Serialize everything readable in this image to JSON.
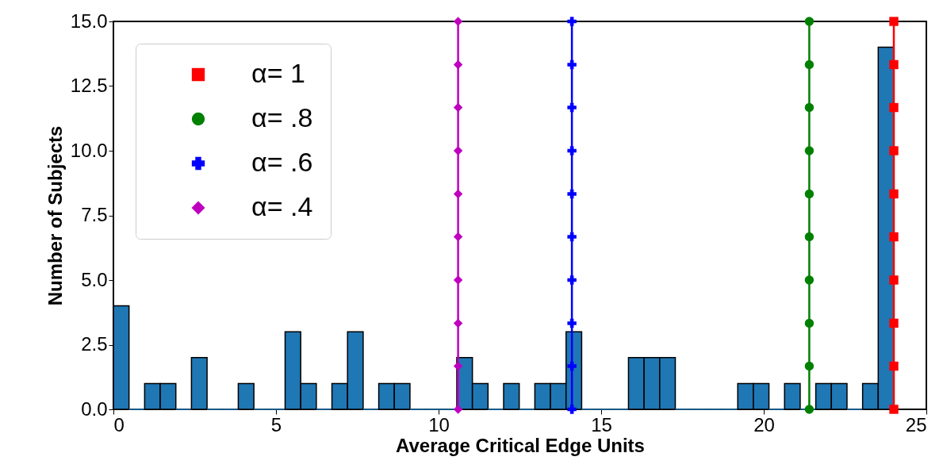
{
  "chart_data": {
    "type": "histogram",
    "xlabel": "Average Critical Edge Units",
    "ylabel": "Number of Subjects",
    "bins": [
      0,
      0.48,
      0.96,
      1.44,
      1.92,
      2.4,
      2.88,
      3.36,
      3.84,
      4.32,
      4.8,
      5.28,
      5.76,
      6.24,
      6.72,
      7.2,
      7.68,
      8.16,
      8.64,
      9.12,
      9.6,
      10.08,
      10.56,
      11.04,
      11.52,
      12,
      12.48,
      12.96,
      13.44,
      13.92,
      14.4,
      14.88,
      15.36,
      15.84,
      16.32,
      16.8,
      17.28,
      17.76,
      18.24,
      18.72,
      19.2,
      19.68,
      20.16,
      20.64,
      21.12,
      21.6,
      22.08,
      22.56,
      23.04,
      23.52,
      24
    ],
    "series": [
      {
        "color": "#1f77b4",
        "values": [
          4,
          0,
          1,
          1,
          0,
          2,
          0,
          0,
          1,
          0,
          0,
          3,
          1,
          0,
          1,
          3,
          0,
          1,
          1,
          0,
          0,
          0,
          2,
          1,
          0,
          1,
          0,
          1,
          1,
          3,
          0,
          0,
          0,
          2,
          2,
          2,
          0,
          0,
          0,
          0,
          1,
          1,
          0,
          1,
          0,
          1,
          1,
          0,
          1,
          14
        ]
      },
      {
        "type": "line",
        "name": "α= 1",
        "color": "#ff0000",
        "marker": "square",
        "x": [
          24,
          24,
          24,
          24,
          24,
          24,
          24,
          24,
          24,
          24
        ],
        "values": [
          0,
          1.67,
          3.33,
          5,
          6.67,
          8.33,
          10,
          11.67,
          13.33,
          15
        ]
      },
      {
        "type": "line",
        "name": "α= .8",
        "color": "#008000",
        "marker": "circle",
        "x": [
          21.4,
          21.4,
          21.4,
          21.4,
          21.4,
          21.4,
          21.4,
          21.4,
          21.4,
          21.4
        ],
        "values": [
          0,
          1.67,
          3.33,
          5,
          6.67,
          8.33,
          10,
          11.67,
          13.33,
          15
        ]
      },
      {
        "type": "line",
        "name": "α= .6",
        "color": "#0000ff",
        "marker": "cross",
        "x": [
          14.1,
          14.1,
          14.1,
          14.1,
          14.1,
          14.1,
          14.1,
          14.1,
          14.1,
          14.1
        ],
        "values": [
          0,
          1.67,
          3.33,
          5,
          6.67,
          8.33,
          10,
          11.67,
          13.33,
          15
        ]
      },
      {
        "type": "line",
        "name": "α= .4",
        "color": "#bf00bf",
        "marker": "diamond",
        "x": [
          10.6,
          10.6,
          10.6,
          10.6,
          10.6,
          10.6,
          10.6,
          10.6,
          10.6,
          10.6
        ],
        "values": [
          0,
          1.67,
          3.33,
          5,
          6.67,
          8.33,
          10,
          11.67,
          13.33,
          15
        ]
      }
    ],
    "xlim": [
      0,
      25
    ],
    "xticks": [
      0,
      5,
      10,
      15,
      20,
      25
    ],
    "ylim": [
      0,
      15
    ],
    "yticks": [
      {
        "value": 0,
        "label": "0.0"
      },
      {
        "value": 2.5,
        "label": "2.5"
      },
      {
        "value": 5,
        "label": "5.0"
      },
      {
        "value": 7.5,
        "label": "7.5"
      },
      {
        "value": 10,
        "label": "10.0"
      },
      {
        "value": 12.5,
        "label": "12.5"
      },
      {
        "value": 15,
        "label": "15.0"
      }
    ],
    "grid": false,
    "legend": "top left"
  }
}
